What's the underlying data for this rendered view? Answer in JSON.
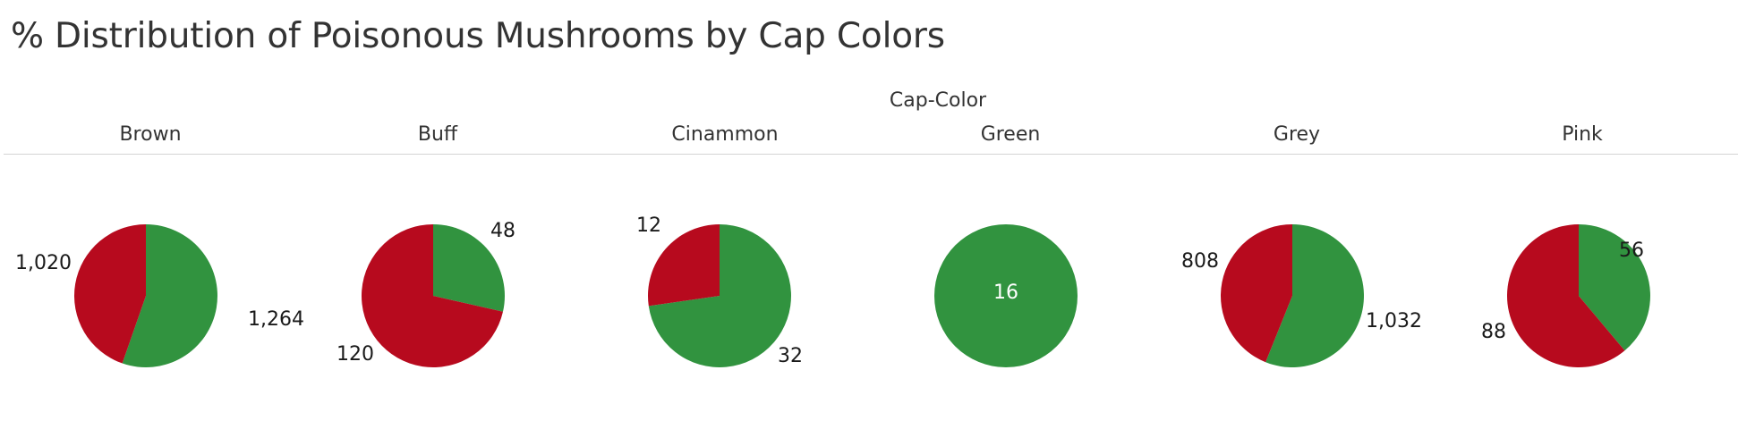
{
  "title": "% Distribution of Poisonous Mushrooms by Cap Colors",
  "chart_data": {
    "type": "pie",
    "title": "% Distribution of Poisonous Mushrooms by Cap Colors",
    "facet_label": "Cap-Color",
    "colors": {
      "green": "#31933F",
      "red": "#B70A1E"
    },
    "pies": [
      {
        "category": "Brown",
        "slices": [
          {
            "color": "green",
            "value": 1264,
            "label": "1,264"
          },
          {
            "color": "red",
            "value": 1020,
            "label": "1,020"
          }
        ]
      },
      {
        "category": "Buff",
        "slices": [
          {
            "color": "green",
            "value": 48,
            "label": "48"
          },
          {
            "color": "red",
            "value": 120,
            "label": "120"
          }
        ]
      },
      {
        "category": "Cinammon",
        "slices": [
          {
            "color": "green",
            "value": 32,
            "label": "32"
          },
          {
            "color": "red",
            "value": 12,
            "label": "12"
          }
        ]
      },
      {
        "category": "Green",
        "slices": [
          {
            "color": "green",
            "value": 16,
            "label": "16"
          }
        ]
      },
      {
        "category": "Grey",
        "slices": [
          {
            "color": "green",
            "value": 1032,
            "label": "1,032"
          },
          {
            "color": "red",
            "value": 808,
            "label": "808"
          }
        ]
      },
      {
        "category": "Pink",
        "slices": [
          {
            "color": "green",
            "value": 56,
            "label": "56"
          },
          {
            "color": "red",
            "value": 88,
            "label": "88"
          }
        ]
      }
    ]
  }
}
